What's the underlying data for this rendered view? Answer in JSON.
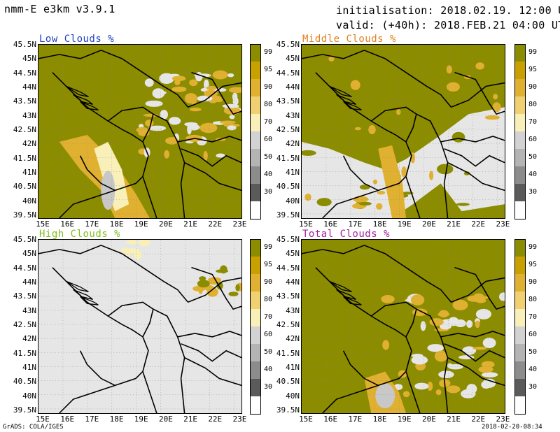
{
  "header": {
    "model": "nmm-E e3km v3.9.1",
    "init": "initialisation: 2018.02.19. 12:00 UTC",
    "valid": "valid: (+40h): 2018.FEB.21 04:00 UTC"
  },
  "footer": {
    "left": "GrADS: COLA/IGES",
    "right": "2018-02-20-08:34"
  },
  "axes": {
    "lat_labels": [
      "45.5N",
      "45N",
      "44.5N",
      "44N",
      "43.5N",
      "43N",
      "42.5N",
      "42N",
      "41.5N",
      "41N",
      "40.5N",
      "40N",
      "39.5N"
    ],
    "lon_labels": [
      "15E",
      "16E",
      "17E",
      "18E",
      "19E",
      "20E",
      "21E",
      "22E",
      "23E"
    ]
  },
  "colorbar": {
    "labels": [
      "99",
      "95",
      "90",
      "80",
      "70",
      "60",
      "50",
      "40",
      "30"
    ],
    "colors": [
      "#8c8c00",
      "#c8a000",
      "#e0b030",
      "#f0d070",
      "#f8f0b8",
      "#d2d2d2",
      "#b4b4b4",
      "#8c8c8c",
      "#5a5a5a",
      "#ffffff"
    ]
  },
  "panels": [
    {
      "title": "Low Clouds %",
      "title_color": "#2040c0"
    },
    {
      "title": "Middle Clouds %",
      "title_color": "#e08020"
    },
    {
      "title": "High Clouds %",
      "title_color": "#80c020"
    },
    {
      "title": "Total Clouds %",
      "title_color": "#a020a0"
    }
  ],
  "colors": {
    "olive": "#8c8c00",
    "grey_light": "#e6e6e6",
    "grey": "#c8c8c8",
    "orange": "#e0b030",
    "yellow": "#f8f0b8"
  }
}
